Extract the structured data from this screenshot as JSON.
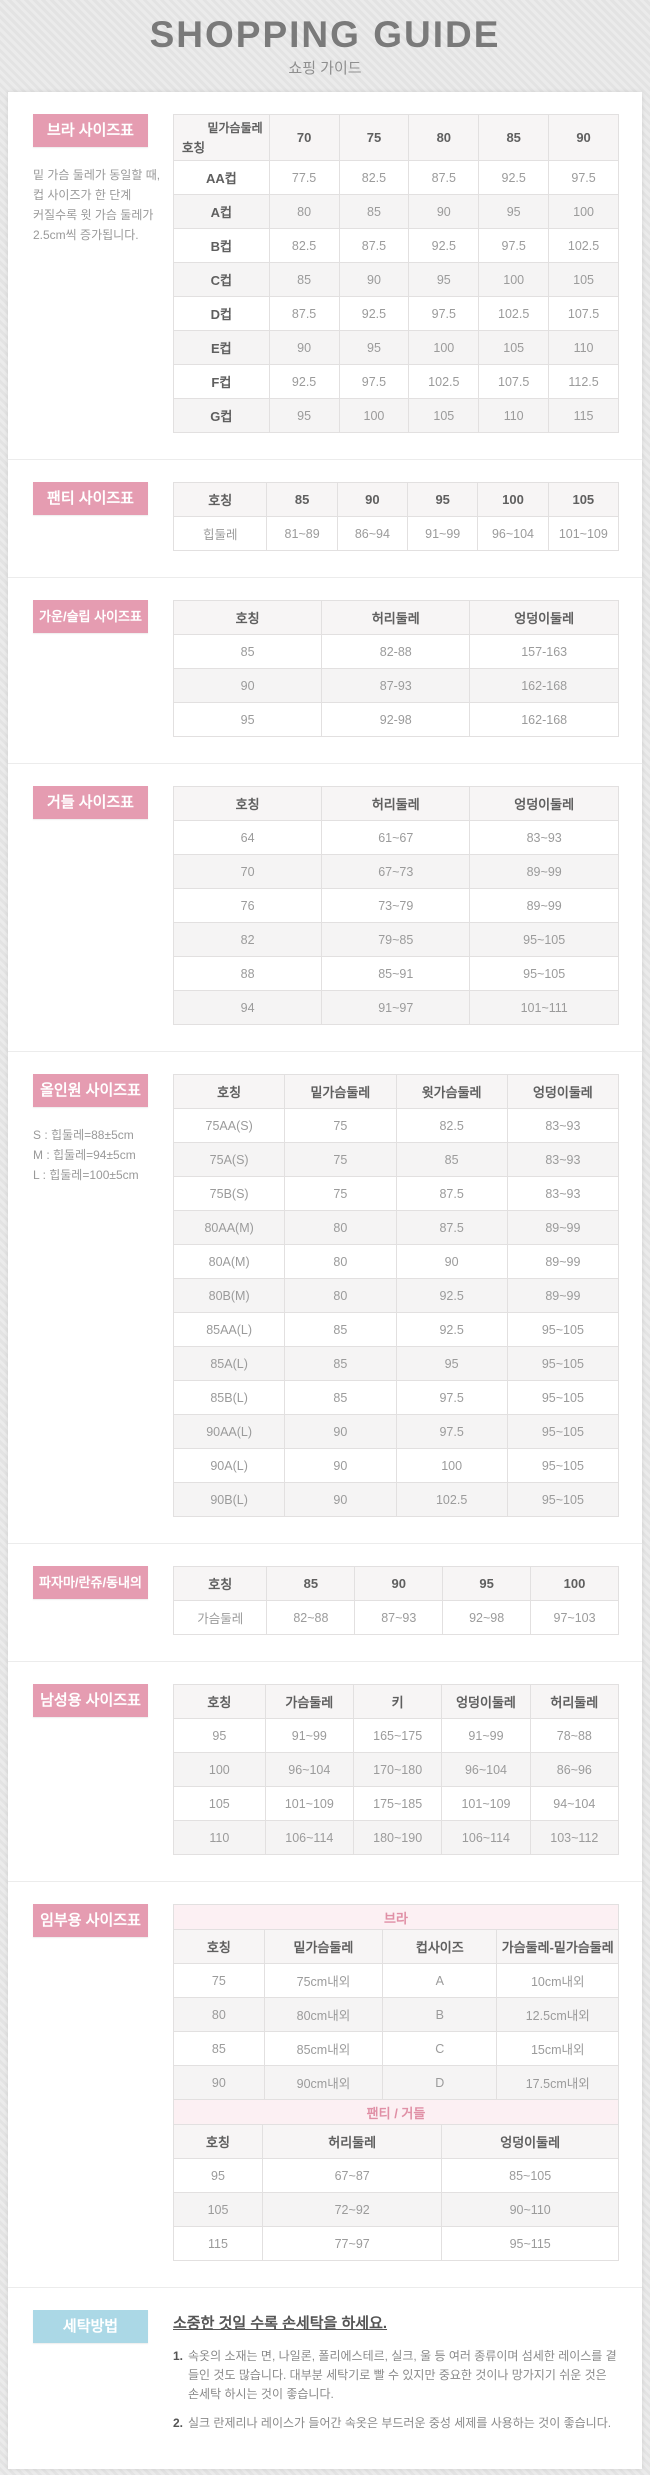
{
  "header": {
    "title": "SHOPPING GUIDE",
    "subtitle": "쇼핑 가이드"
  },
  "colors": {
    "accent_pink": "#e59cb1",
    "accent_blue": "#abd8e6",
    "subtitle_row_bg": "#fcf0f3",
    "subtitle_row_text": "#e090a6"
  },
  "sections": [
    {
      "id": "bra",
      "label": "브라 사이즈표",
      "note": [
        "밑 가슴 둘레가 동일할 때,",
        "컵 사이즈가 한 단계",
        "커질수록 윗 가슴 둘레가",
        "2.5cm씩 증가됩니다."
      ],
      "tables": [
        {
          "diagonal": {
            "top": "밑가슴둘레",
            "bottom": "호칭"
          },
          "columns": [
            "70",
            "75",
            "80",
            "85",
            "90"
          ],
          "rows": [
            [
              "AA컵",
              "77.5",
              "82.5",
              "87.5",
              "92.5",
              "97.5"
            ],
            [
              "A컵",
              "80",
              "85",
              "90",
              "95",
              "100"
            ],
            [
              "B컵",
              "82.5",
              "87.5",
              "92.5",
              "97.5",
              "102.5"
            ],
            [
              "C컵",
              "85",
              "90",
              "95",
              "100",
              "105"
            ],
            [
              "D컵",
              "87.5",
              "92.5",
              "97.5",
              "102.5",
              "107.5"
            ],
            [
              "E컵",
              "90",
              "95",
              "100",
              "105",
              "110"
            ],
            [
              "F컵",
              "92.5",
              "97.5",
              "102.5",
              "107.5",
              "112.5"
            ],
            [
              "G컵",
              "95",
              "100",
              "105",
              "110",
              "115"
            ]
          ]
        }
      ]
    },
    {
      "id": "panty",
      "label": "팬티 사이즈표",
      "note": [],
      "tables": [
        {
          "header": [
            "호칭",
            "85",
            "90",
            "95",
            "100",
            "105"
          ],
          "rows": [
            [
              "힙둘레",
              "81~89",
              "86~94",
              "91~99",
              "96~104",
              "101~109"
            ]
          ]
        }
      ]
    },
    {
      "id": "gown",
      "label": "가운/슬립 사이즈표",
      "note": [],
      "tables": [
        {
          "header": [
            "호칭",
            "허리둘레",
            "엉덩이둘레"
          ],
          "rows": [
            [
              "85",
              "82-88",
              "157-163"
            ],
            [
              "90",
              "87-93",
              "162-168"
            ],
            [
              "95",
              "92-98",
              "162-168"
            ]
          ]
        }
      ]
    },
    {
      "id": "girdle",
      "label": "거들 사이즈표",
      "note": [],
      "tables": [
        {
          "header": [
            "호칭",
            "허리둘레",
            "엉덩이둘레"
          ],
          "rows": [
            [
              "64",
              "61~67",
              "83~93"
            ],
            [
              "70",
              "67~73",
              "89~99"
            ],
            [
              "76",
              "73~79",
              "89~99"
            ],
            [
              "82",
              "79~85",
              "95~105"
            ],
            [
              "88",
              "85~91",
              "95~105"
            ],
            [
              "94",
              "91~97",
              "101~111"
            ]
          ]
        }
      ]
    },
    {
      "id": "allinone",
      "label": "올인원 사이즈표",
      "note": [
        "S : 힙둘레=88±5cm",
        "M : 힙둘레=94±5cm",
        "L : 힙둘레=100±5cm"
      ],
      "tables": [
        {
          "header": [
            "호칭",
            "밑가슴둘레",
            "윗가슴둘레",
            "엉덩이둘레"
          ],
          "rows": [
            [
              "75AA(S)",
              "75",
              "82.5",
              "83~93"
            ],
            [
              "75A(S)",
              "75",
              "85",
              "83~93"
            ],
            [
              "75B(S)",
              "75",
              "87.5",
              "83~93"
            ],
            [
              "80AA(M)",
              "80",
              "87.5",
              "89~99"
            ],
            [
              "80A(M)",
              "80",
              "90",
              "89~99"
            ],
            [
              "80B(M)",
              "80",
              "92.5",
              "89~99"
            ],
            [
              "85AA(L)",
              "85",
              "92.5",
              "95~105"
            ],
            [
              "85A(L)",
              "85",
              "95",
              "95~105"
            ],
            [
              "85B(L)",
              "85",
              "97.5",
              "95~105"
            ],
            [
              "90AA(L)",
              "90",
              "97.5",
              "95~105"
            ],
            [
              "90A(L)",
              "90",
              "100",
              "95~105"
            ],
            [
              "90B(L)",
              "90",
              "102.5",
              "95~105"
            ]
          ]
        }
      ]
    },
    {
      "id": "pajama",
      "label": "파자마/란쥬/동내의",
      "note": [],
      "tables": [
        {
          "header": [
            "호칭",
            "85",
            "90",
            "95",
            "100"
          ],
          "rows": [
            [
              "가슴둘레",
              "82~88",
              "87~93",
              "92~98",
              "97~103"
            ]
          ]
        }
      ]
    },
    {
      "id": "mens",
      "label": "남성용 사이즈표",
      "note": [],
      "tables": [
        {
          "header": [
            "호칭",
            "가슴둘레",
            "키",
            "엉덩이둘레",
            "허리둘레"
          ],
          "rows": [
            [
              "95",
              "91~99",
              "165~175",
              "91~99",
              "78~88"
            ],
            [
              "100",
              "96~104",
              "170~180",
              "96~104",
              "86~96"
            ],
            [
              "105",
              "101~109",
              "175~185",
              "101~109",
              "94~104"
            ],
            [
              "110",
              "106~114",
              "180~190",
              "106~114",
              "103~112"
            ]
          ]
        }
      ]
    },
    {
      "id": "maternity",
      "label": "임부용 사이즈표",
      "note": [],
      "tables": [
        {
          "subtitle": "브라",
          "header": [
            "호칭",
            "밑가슴둘레",
            "컵사이즈",
            "가슴둘레-밑가슴둘레"
          ],
          "rows": [
            [
              "75",
              "75cm내외",
              "A",
              "10cm내외"
            ],
            [
              "80",
              "80cm내외",
              "B",
              "12.5cm내외"
            ],
            [
              "85",
              "85cm내외",
              "C",
              "15cm내외"
            ],
            [
              "90",
              "90cm내외",
              "D",
              "17.5cm내외"
            ]
          ]
        },
        {
          "subtitle": "팬티 / 거들",
          "header": [
            "호칭",
            "허리둘레",
            "엉덩이둘레"
          ],
          "rows": [
            [
              "95",
              "67~87",
              "85~105"
            ],
            [
              "105",
              "72~92",
              "90~110"
            ],
            [
              "115",
              "77~97",
              "95~115"
            ]
          ]
        }
      ]
    }
  ],
  "washing": {
    "label": "세탁방법",
    "title": "소중한 것일 수록 손세탁을 하세요.",
    "items": [
      {
        "num": "1.",
        "text": "속옷의 소재는 면, 나일론, 폴리에스테르, 실크, 울 등 여러 종류이며 섬세한 레이스를 곁들인 것도 많습니다. 대부분 세탁기로 빨 수 있지만 중요한 것이나 망가지기 쉬운 것은 손세탁 하시는 것이 좋습니다."
      },
      {
        "num": "2.",
        "text": "실크 란제리나 레이스가 들어간 속옷은 부드러운 중성 세제를 사용하는 것이 좋습니다."
      }
    ]
  }
}
